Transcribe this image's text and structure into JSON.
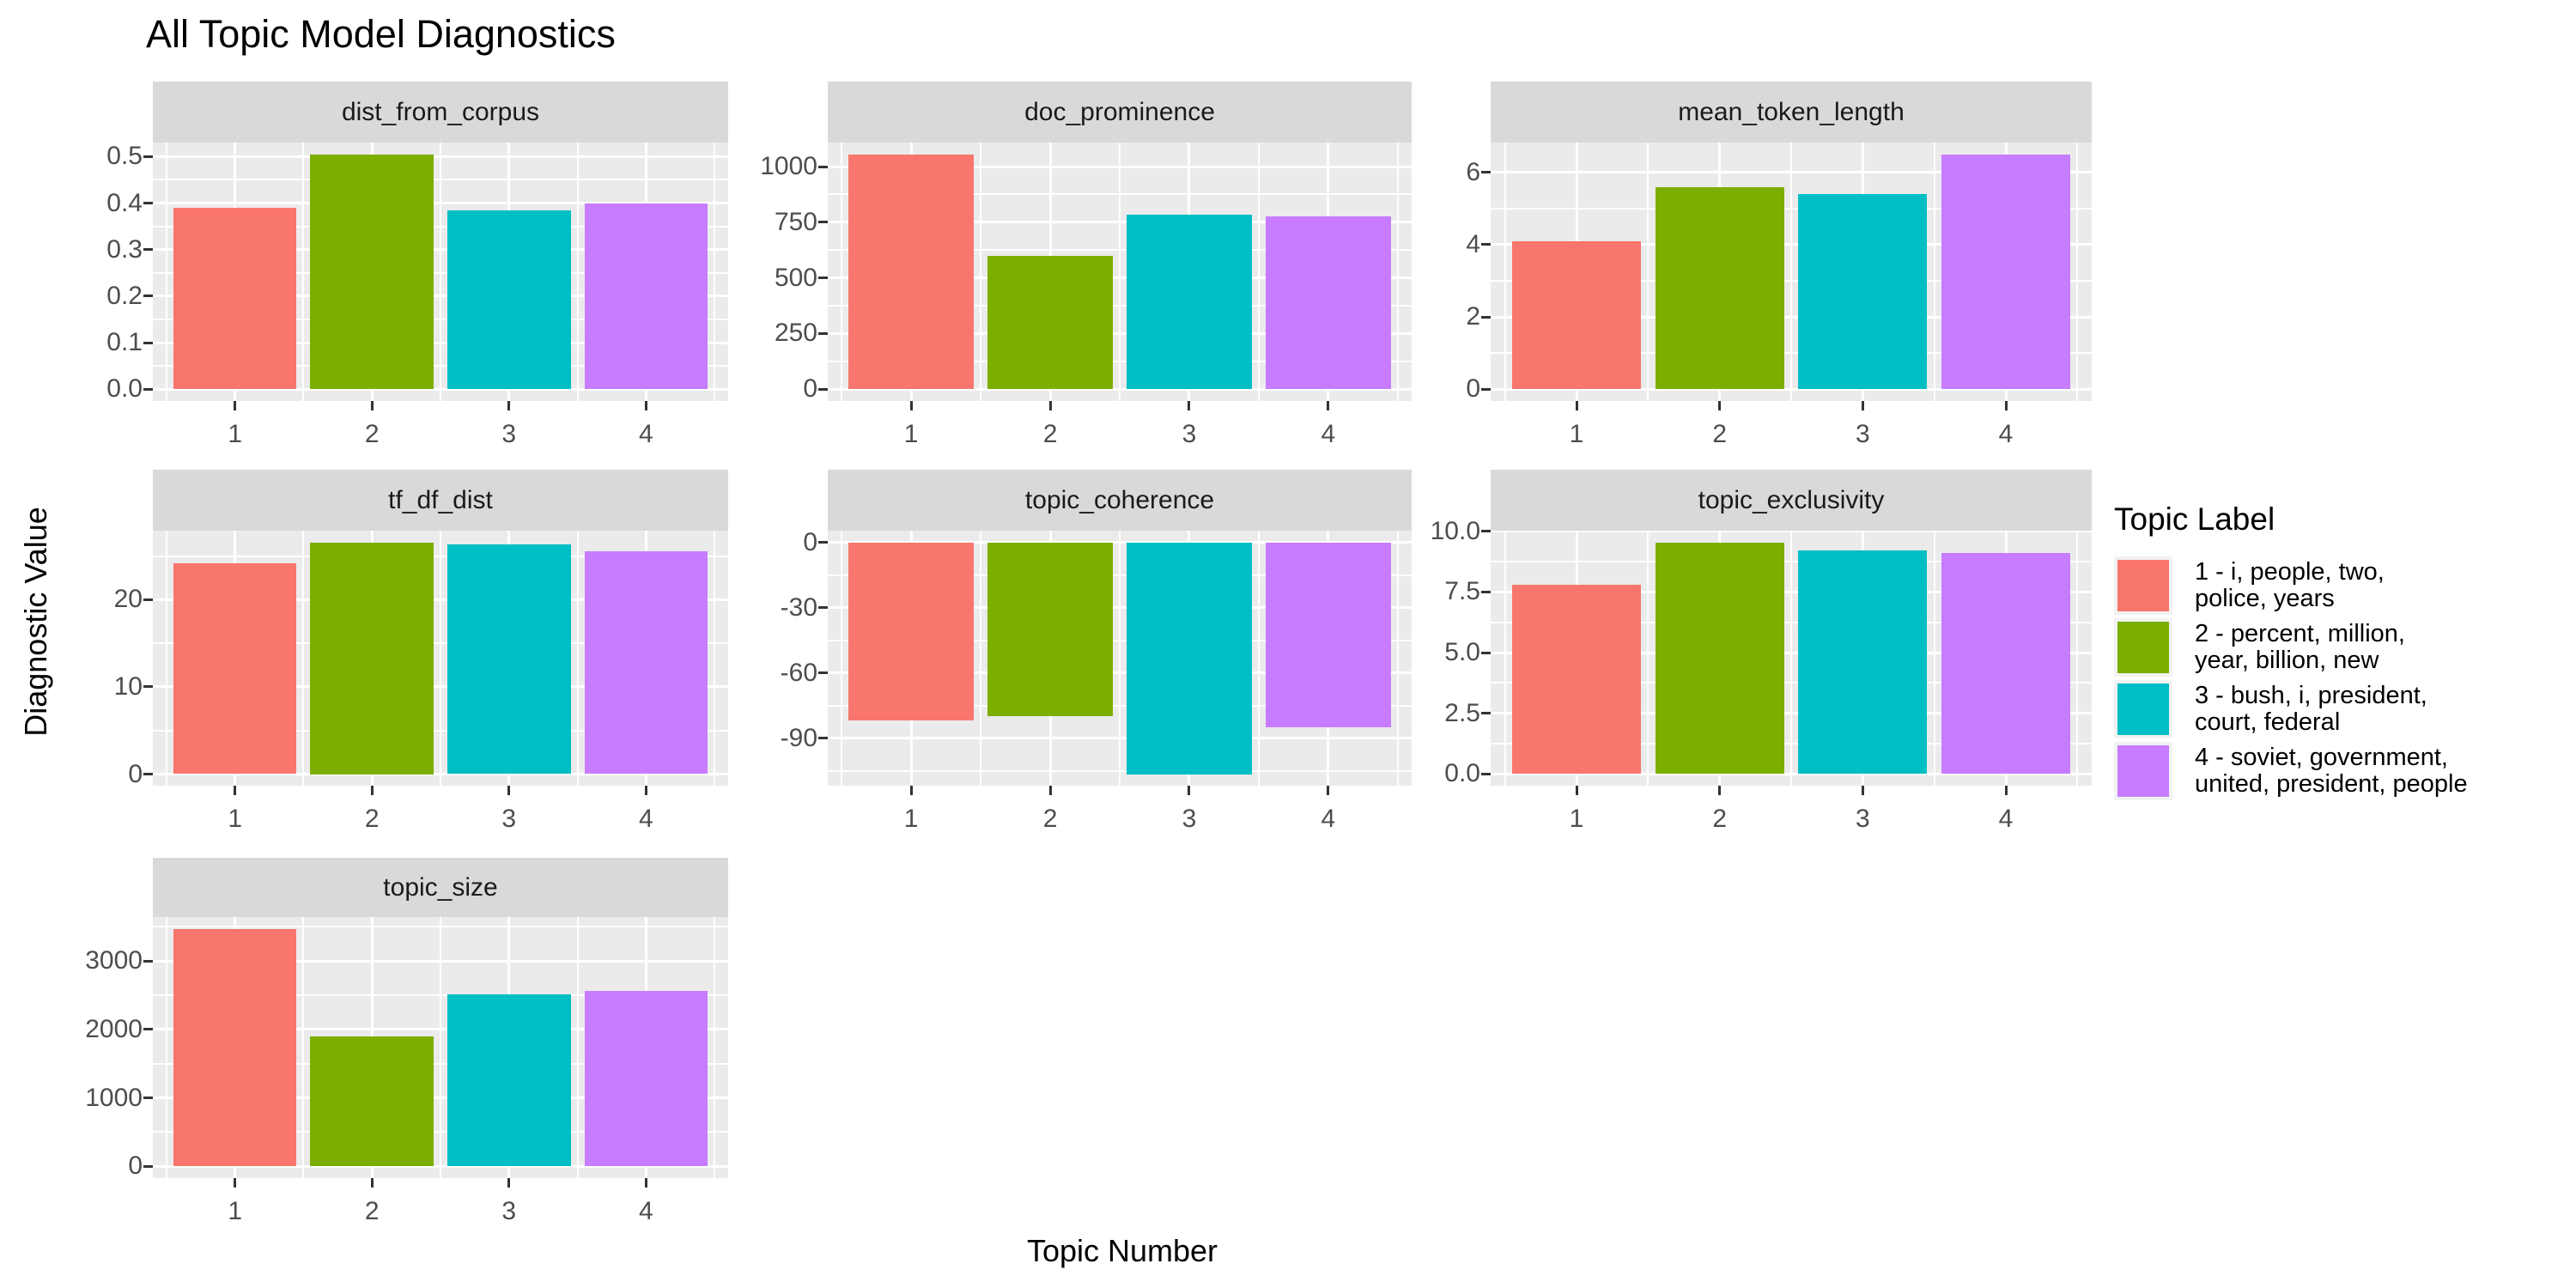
{
  "chart_data": {
    "type": "bar",
    "title": "All Topic Model Diagnostics",
    "xlabel": "Topic Number",
    "ylabel": "Diagnostic Value",
    "categories": [
      "1",
      "2",
      "3",
      "4"
    ],
    "grid": true,
    "legend_position": "right",
    "panel_bg": "#EBEBEB",
    "strip_bg": "#D9D9D9",
    "grid_color": "#FFFFFF",
    "bar_colors": [
      "#F8766D",
      "#7CAE00",
      "#00BFC4",
      "#C77CFF"
    ],
    "legend": {
      "title": "Topic Label",
      "entries": [
        {
          "color": "#F8766D",
          "lines": [
            "1 - i, people, two,",
            "police, years"
          ]
        },
        {
          "color": "#7CAE00",
          "lines": [
            "2 - percent, million,",
            "year, billion, new"
          ]
        },
        {
          "color": "#00BFC4",
          "lines": [
            "3 - bush, i, president,",
            "court, federal"
          ]
        },
        {
          "color": "#C77CFF",
          "lines": [
            "4 - soviet, government,",
            "united, president, people"
          ]
        }
      ]
    },
    "facets": [
      {
        "name": "dist_from_corpus",
        "values": [
          0.39,
          0.505,
          0.385,
          0.4
        ],
        "yticks": [
          0,
          0.1,
          0.2,
          0.3,
          0.4,
          0.5
        ],
        "ytick_labels": [
          "0.0",
          "0.1",
          "0.2",
          "0.3",
          "0.4",
          "0.5"
        ],
        "ylim": [
          -0.025,
          0.53
        ]
      },
      {
        "name": "doc_prominence",
        "values": [
          1055,
          600,
          785,
          775
        ],
        "yticks": [
          0,
          250,
          500,
          750,
          1000
        ],
        "ytick_labels": [
          "0",
          "250",
          "500",
          "750",
          "1000"
        ],
        "ylim": [
          -53,
          1108
        ]
      },
      {
        "name": "mean_token_length",
        "values": [
          4.1,
          5.6,
          5.4,
          6.5
        ],
        "yticks": [
          0,
          2,
          4,
          6
        ],
        "ytick_labels": [
          "0",
          "2",
          "4",
          "6"
        ],
        "ylim": [
          -0.33,
          6.83
        ]
      },
      {
        "name": "tf_df_dist",
        "values": [
          24.2,
          26.6,
          26.4,
          25.6
        ],
        "yticks": [
          0,
          10,
          20
        ],
        "ytick_labels": [
          "0",
          "10",
          "20"
        ],
        "ylim": [
          -1.33,
          27.93
        ]
      },
      {
        "name": "topic_coherence",
        "values": [
          -82,
          -80,
          -106.5,
          -85
        ],
        "yticks": [
          0,
          -30,
          -60,
          -90
        ],
        "ytick_labels": [
          "0",
          "-30",
          "-60",
          "-90"
        ],
        "ylim": [
          -111.8,
          5.33
        ]
      },
      {
        "name": "topic_exclusivity",
        "values": [
          7.8,
          9.55,
          9.2,
          9.1
        ],
        "yticks": [
          0,
          2.5,
          5,
          7.5,
          10
        ],
        "ytick_labels": [
          "0.0",
          "2.5",
          "5.0",
          "7.5",
          "10.0"
        ],
        "ylim": [
          -0.48,
          10.03
        ]
      },
      {
        "name": "topic_size",
        "values": [
          3470,
          1900,
          2510,
          2560
        ],
        "yticks": [
          0,
          1000,
          2000,
          3000
        ],
        "ytick_labels": [
          "0",
          "1000",
          "2000",
          "3000"
        ],
        "ylim": [
          -173,
          3644
        ]
      }
    ]
  }
}
